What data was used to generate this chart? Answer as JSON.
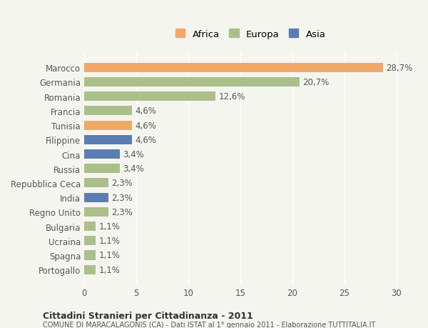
{
  "countries": [
    "Marocco",
    "Germania",
    "Romania",
    "Francia",
    "Tunisia",
    "Filippine",
    "Cina",
    "Russia",
    "Repubblica Ceca",
    "India",
    "Regno Unito",
    "Bulgaria",
    "Ucraina",
    "Spagna",
    "Portogallo"
  ],
  "values": [
    28.7,
    20.7,
    12.6,
    4.6,
    4.6,
    4.6,
    3.4,
    3.4,
    2.3,
    2.3,
    2.3,
    1.1,
    1.1,
    1.1,
    1.1
  ],
  "labels": [
    "28,7%",
    "20,7%",
    "12,6%",
    "4,6%",
    "4,6%",
    "4,6%",
    "3,4%",
    "3,4%",
    "2,3%",
    "2,3%",
    "2,3%",
    "1,1%",
    "1,1%",
    "1,1%",
    "1,1%"
  ],
  "continents": [
    "Africa",
    "Europa",
    "Europa",
    "Europa",
    "Africa",
    "Asia",
    "Asia",
    "Europa",
    "Europa",
    "Asia",
    "Europa",
    "Europa",
    "Europa",
    "Europa",
    "Europa"
  ],
  "colors": {
    "Africa": "#F0A868",
    "Europa": "#AABF8A",
    "Asia": "#5B7DB1"
  },
  "xlim": [
    0,
    32
  ],
  "xticks": [
    0,
    5,
    10,
    15,
    20,
    25,
    30
  ],
  "title": "Cittadini Stranieri per Cittadinanza - 2011",
  "subtitle": "COMUNE DI MARACALAGONIS (CA) - Dati ISTAT al 1° gennaio 2011 - Elaborazione TUTTITALIA.IT",
  "background_color": "#f5f5f0",
  "bar_height": 0.65,
  "label_fontsize": 8.5,
  "tick_fontsize": 8.5,
  "legend_order": [
    "Africa",
    "Europa",
    "Asia"
  ]
}
